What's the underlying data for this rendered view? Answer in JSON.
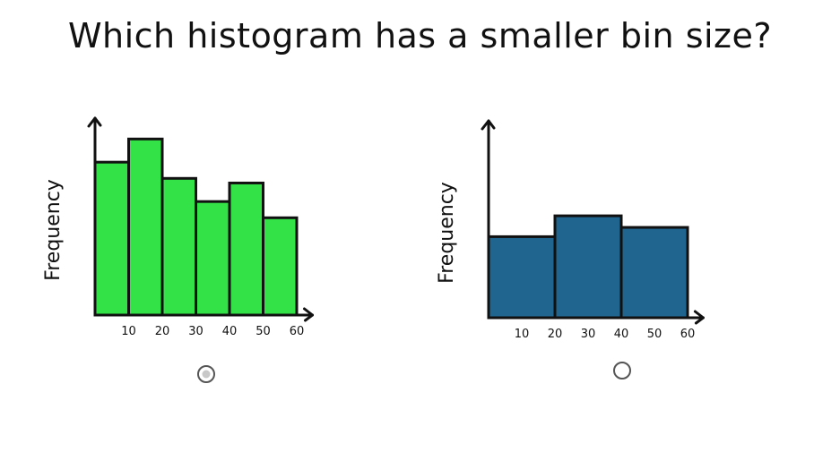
{
  "title": "Which histogram has a smaller bin size?",
  "chart_data": [
    {
      "type": "bar",
      "ylabel": "Frequency",
      "xlabel": "",
      "bin_edges": [
        0,
        10,
        20,
        30,
        40,
        50,
        60
      ],
      "x_ticks": [
        10,
        20,
        30,
        40,
        50,
        60
      ],
      "values": [
        6.6,
        7.6,
        5.9,
        4.9,
        5.7,
        4.2
      ],
      "ylim": [
        0,
        8.5
      ],
      "xlim": [
        0,
        62
      ],
      "color": "#33e246",
      "grid": false
    },
    {
      "type": "bar",
      "ylabel": "Frequency",
      "xlabel": "",
      "bin_edges": [
        0,
        20,
        40,
        60
      ],
      "x_ticks": [
        10,
        20,
        30,
        40,
        50,
        60
      ],
      "values": [
        3.5,
        4.4,
        3.9
      ],
      "ylim": [
        0,
        8.5
      ],
      "xlim": [
        0,
        62
      ],
      "color": "#1f6590",
      "grid": false
    }
  ]
}
